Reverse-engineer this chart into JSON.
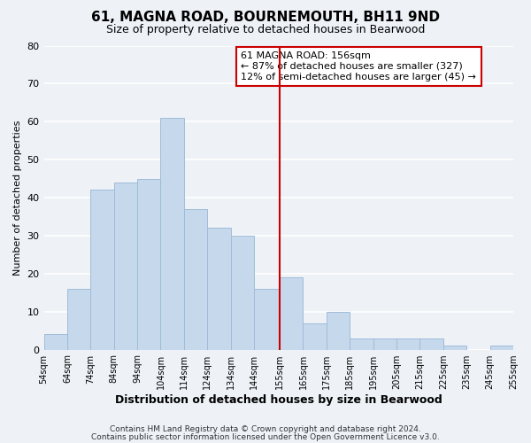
{
  "title": "61, MAGNA ROAD, BOURNEMOUTH, BH11 9ND",
  "subtitle": "Size of property relative to detached houses in Bearwood",
  "xlabel": "Distribution of detached houses by size in Bearwood",
  "ylabel": "Number of detached properties",
  "bar_color": "#c5d8ec",
  "bar_edge_color": "#a0bcd8",
  "bins": [
    54,
    64,
    74,
    84,
    94,
    104,
    114,
    124,
    134,
    144,
    155,
    165,
    175,
    185,
    195,
    205,
    215,
    225,
    235,
    245,
    255
  ],
  "counts": [
    4,
    16,
    42,
    44,
    45,
    61,
    37,
    32,
    30,
    16,
    19,
    7,
    10,
    3,
    3,
    3,
    3,
    1,
    0,
    1
  ],
  "vline_x": 155,
  "vline_color": "#cc0000",
  "annotation_title": "61 MAGNA ROAD: 156sqm",
  "annotation_line1": "← 87% of detached houses are smaller (327)",
  "annotation_line2": "12% of semi-detached houses are larger (45) →",
  "ylim": [
    0,
    80
  ],
  "yticks": [
    0,
    10,
    20,
    30,
    40,
    50,
    60,
    70,
    80
  ],
  "xtick_labels": [
    "54sqm",
    "64sqm",
    "74sqm",
    "84sqm",
    "94sqm",
    "104sqm",
    "114sqm",
    "124sqm",
    "134sqm",
    "144sqm",
    "155sqm",
    "165sqm",
    "175sqm",
    "185sqm",
    "195sqm",
    "205sqm",
    "215sqm",
    "225sqm",
    "235sqm",
    "245sqm",
    "255sqm"
  ],
  "footnote1": "Contains HM Land Registry data © Crown copyright and database right 2024.",
  "footnote2": "Contains public sector information licensed under the Open Government Licence v3.0.",
  "background_color": "#eef2f7",
  "grid_color": "#ffffff"
}
